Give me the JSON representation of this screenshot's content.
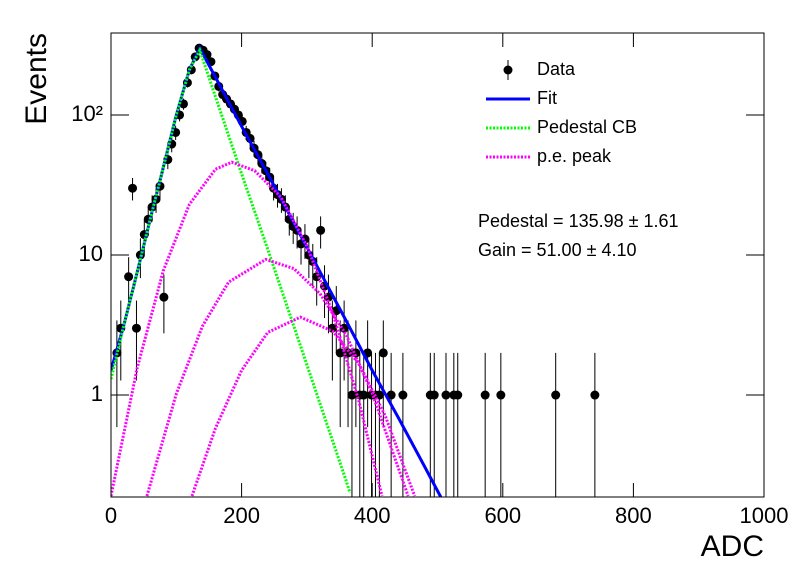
{
  "chart_data": {
    "type": "scatter",
    "xlabel": "ADC",
    "ylabel": "Events",
    "xlim": [
      0,
      1000
    ],
    "ylim": [
      0.187,
      385
    ],
    "log_y": true,
    "xticks": [
      0,
      200,
      400,
      600,
      800,
      1000
    ],
    "yticks": [
      1,
      10,
      {
        "value": 100,
        "label": "10²"
      }
    ],
    "legend": "top-right",
    "annotations": [
      "Pedestal = 135.98 ± 1.61",
      "Gain = 51.00 ± 4.10"
    ],
    "series": [
      {
        "name": "Data",
        "color": "#000000",
        "style": "points",
        "x": [
          9,
          15,
          27,
          33,
          39,
          45,
          51,
          57,
          63,
          69,
          75,
          81,
          87,
          93,
          99,
          105,
          111,
          117,
          123,
          129,
          135,
          141,
          147,
          153,
          159,
          165,
          171,
          177,
          183,
          189,
          195,
          201,
          207,
          213,
          219,
          225,
          231,
          237,
          243,
          249,
          255,
          261,
          267,
          273,
          279,
          285,
          291,
          297,
          303,
          309,
          315,
          321,
          327,
          333,
          339,
          345,
          351,
          357,
          363,
          369,
          375,
          381,
          387,
          393,
          399,
          405,
          411,
          417,
          429,
          447,
          489,
          495,
          513,
          525,
          531,
          573,
          597,
          681,
          741
        ],
        "values": [
          2,
          3,
          7,
          30,
          3,
          10,
          14,
          18,
          22,
          25,
          31,
          5,
          48,
          62,
          75,
          100,
          120,
          170,
          210,
          260,
          300,
          290,
          270,
          240,
          190,
          160,
          140,
          130,
          120,
          110,
          100,
          90,
          75,
          68,
          58,
          52,
          45,
          40,
          36,
          30,
          27,
          25,
          22,
          18,
          16,
          15,
          12,
          13,
          10,
          9,
          7,
          15,
          6,
          5,
          3,
          4,
          2,
          3,
          2,
          1,
          2,
          1,
          1,
          2,
          1,
          1,
          1,
          2,
          1,
          1,
          1,
          1,
          1,
          1,
          1,
          1,
          1,
          1,
          1
        ],
        "errors": [
          1.41,
          1.73,
          2.65,
          5.48,
          1.73,
          3.16,
          3.74,
          4.24,
          4.69,
          5,
          5.57,
          2.24,
          6.93,
          7.87,
          8.66,
          10,
          10.95,
          13.04,
          14.49,
          16.12,
          17.32,
          17.03,
          16.43,
          15.49,
          13.78,
          12.65,
          11.83,
          11.4,
          10.95,
          10.49,
          10,
          9.49,
          8.66,
          8.25,
          7.62,
          7.21,
          6.71,
          6.32,
          6,
          5.48,
          5.2,
          5,
          4.69,
          4.24,
          4,
          3.87,
          3.46,
          3.61,
          3.16,
          3,
          2.65,
          3.87,
          2.45,
          2.24,
          1.73,
          2,
          1.41,
          1.73,
          1.41,
          1,
          1.41,
          1,
          1,
          1.41,
          1,
          1,
          1,
          1.41,
          1,
          1,
          1,
          1,
          1,
          1,
          1,
          1,
          1,
          1,
          1
        ]
      },
      {
        "name": "Fit",
        "color": "#0000ff",
        "style": "solid",
        "x": [
          0,
          20,
          40,
          60,
          80,
          100,
          120,
          136,
          160,
          200,
          240,
          280,
          320,
          360,
          400,
          440,
          480,
          505
        ],
        "values": [
          1.5,
          3.2,
          7.5,
          18,
          42,
          100,
          210,
          300,
          186,
          83,
          38,
          17,
          7.6,
          3.4,
          1.5,
          0.69,
          0.31,
          0.187
        ]
      },
      {
        "name": "Pedestal CB",
        "color": "#00ff00",
        "style": "dotted",
        "x": [
          0,
          20,
          40,
          60,
          80,
          100,
          120,
          136,
          160,
          200,
          240,
          280,
          320,
          360,
          366
        ],
        "values": [
          1.3,
          3.2,
          7.5,
          18,
          42,
          100,
          210,
          290,
          135,
          38,
          11,
          3.1,
          0.87,
          0.245,
          0.2
        ]
      },
      {
        "name": "p.e. peak",
        "color": "#ff00ff",
        "style": "dotted",
        "x": [
          0,
          40,
          80,
          120,
          160,
          185,
          220,
          260,
          300,
          340,
          380,
          415
        ],
        "values": [
          0.19,
          1.55,
          7.7,
          23,
          41,
          46,
          40,
          26,
          11.6,
          3.8,
          0.89,
          0.19
        ]
      },
      {
        "color": "#ff00ff",
        "style": "dotted",
        "x": [
          55,
          100,
          140,
          180,
          237,
          280,
          320,
          360,
          400,
          455
        ],
        "values": [
          0.19,
          1.02,
          3.1,
          6.4,
          9.3,
          8,
          5.3,
          2.7,
          1.03,
          0.19
        ]
      },
      {
        "color": "#ff00ff",
        "style": "dotted",
        "x": [
          124,
          160,
          200,
          240,
          290,
          340,
          380,
          420,
          465
        ],
        "values": [
          0.19,
          0.58,
          1.5,
          2.8,
          3.6,
          2.85,
          1.66,
          0.71,
          0.19
        ]
      }
    ]
  }
}
